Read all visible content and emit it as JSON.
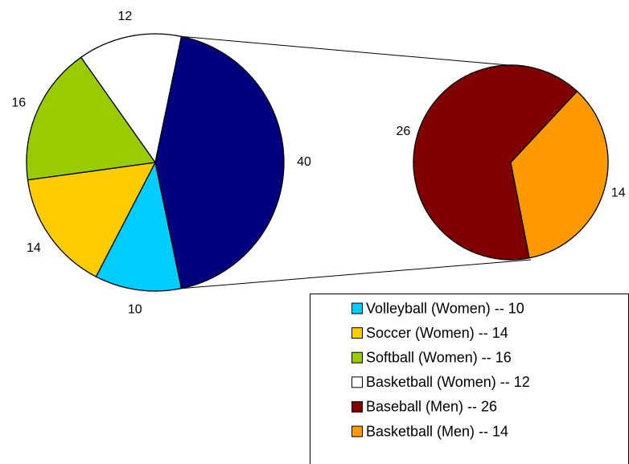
{
  "chart_data": {
    "type": "pie-of-pie",
    "primary": {
      "categories": [
        "Volleyball (Women) -- 10",
        "Soccer (Women) -- 14",
        "Softball (Women) -- 16",
        "Basketball (Women) -- 12"
      ],
      "values": [
        10,
        14,
        16,
        12
      ],
      "colors": [
        "#00ccff",
        "#ffcc00",
        "#99cc00",
        "#ffffff"
      ]
    },
    "other_value": 40,
    "other_color": "#000080",
    "secondary": {
      "categories": [
        "Baseball (Men) -- 26",
        "Basketball (Men) -- 14"
      ],
      "values": [
        26,
        14
      ],
      "colors": [
        "#800000",
        "#ff9900"
      ]
    }
  }
}
